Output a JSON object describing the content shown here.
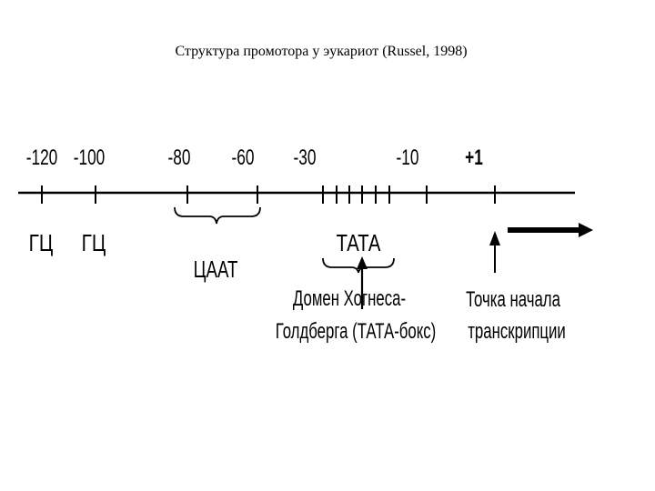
{
  "title": "Структура промотора у эукариот (Russel, 1998)",
  "positions": [
    "-120",
    "-100",
    "-80",
    "-60",
    "-30",
    "-10",
    "+1"
  ],
  "elements": {
    "gc1": "ГЦ",
    "gc2": "ГЦ",
    "caat": "ЦААТ",
    "tata": "ТАТА"
  },
  "annotations": {
    "tata_box_line1": "Домен Хогнеса-",
    "tata_box_line2": "Голдберга (ТАТА-бокс)",
    "start_line1": "Точка начала",
    "start_line2": "транскрипции"
  }
}
